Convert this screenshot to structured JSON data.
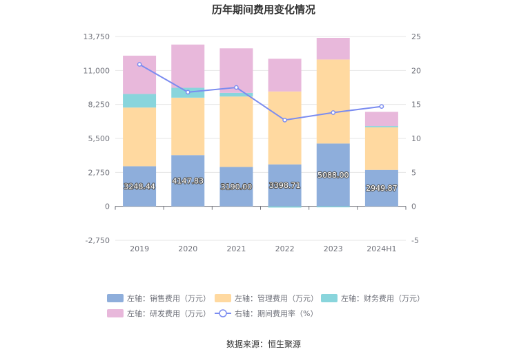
{
  "chart_data": {
    "type": "bar",
    "title": "历年期间费用变化情况",
    "categories": [
      "2019",
      "2020",
      "2021",
      "2022",
      "2023",
      "2024H1"
    ],
    "left_axis": {
      "ticks": [
        13750,
        11000,
        8250,
        5500,
        2750,
        0,
        -2750
      ],
      "tick_labels": [
        "13,750",
        "11,000",
        "8,250",
        "5,500",
        "2,750",
        "0",
        "-2,750"
      ],
      "ylim": [
        -2750,
        13750
      ]
    },
    "right_axis": {
      "ticks": [
        25,
        20,
        15,
        10,
        5,
        0,
        -5
      ],
      "tick_labels": [
        "25",
        "20",
        "15",
        "10",
        "5",
        "0",
        "-5"
      ],
      "ylim": [
        -5,
        25
      ]
    },
    "series": [
      {
        "name": "左轴：销售费用（万元）",
        "axis": "left",
        "kind": "bar",
        "color": "#8eaedb",
        "values": [
          3248.44,
          4147.83,
          3190.0,
          3398.71,
          5088.0,
          2949.87
        ],
        "labels": [
          "3248.44",
          "4147.83",
          "3190.00",
          "3398.71",
          "5088.00",
          "2949.87"
        ]
      },
      {
        "name": "左轴：管理费用（万元）",
        "axis": "left",
        "kind": "bar",
        "color": "#ffd9a0",
        "values": [
          4750,
          4650,
          5700,
          5900,
          6800,
          3450
        ]
      },
      {
        "name": "左轴：财务费用（万元）",
        "axis": "left",
        "kind": "bar",
        "color": "#89d5dc",
        "values": [
          1100,
          800,
          300,
          -100,
          -80,
          100
        ]
      },
      {
        "name": "左轴：研发费用（万元）",
        "axis": "left",
        "kind": "bar",
        "color": "#e8b8db",
        "values": [
          3100,
          3500,
          3600,
          2650,
          1750,
          1150
        ]
      },
      {
        "name": "右轴：期间费用率（%）",
        "axis": "right",
        "kind": "line",
        "color": "#7b8cf0",
        "values": [
          20.9,
          16.8,
          17.5,
          12.7,
          13.8,
          14.7
        ]
      }
    ]
  },
  "source": "数据来源：恒生聚源"
}
